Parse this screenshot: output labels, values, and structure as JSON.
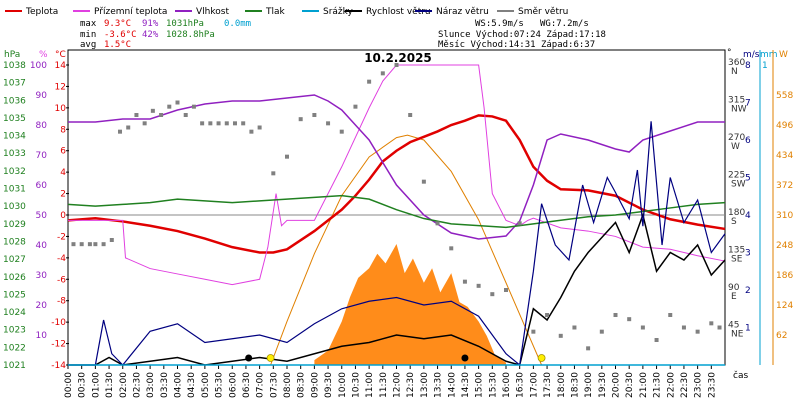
{
  "chart_data": {
    "type": "line",
    "title": "10.2.2025",
    "legend": [
      {
        "key": "temp",
        "label": "Teplota",
        "color": "#e00000"
      },
      {
        "key": "dew",
        "label": "Přízemní teplota",
        "color": "#e040e0"
      },
      {
        "key": "hum",
        "label": "Vlhkost",
        "color": "#9020c0"
      },
      {
        "key": "press",
        "label": "Tlak",
        "color": "#208020"
      },
      {
        "key": "rain",
        "label": "Srážky",
        "color": "#00a0d0"
      },
      {
        "key": "wind",
        "label": "Rychlost větru",
        "color": "#000000"
      },
      {
        "key": "gust",
        "label": "Náraz větru",
        "color": "#000080"
      },
      {
        "key": "dir",
        "label": "Směr větru",
        "color": "#808080"
      }
    ],
    "stats": {
      "max_label": "max",
      "max_temp": "9.3°C",
      "max_hum": "91%",
      "max_press": "1031hPa",
      "max_rain": "0.0mm",
      "min_label": "min",
      "min_temp": "-3.6°C",
      "min_hum": "42%",
      "min_press": "1028.8hPa",
      "avg_label": "avg",
      "avg_temp": "1.5°C",
      "ws": "WS:5.9m/s",
      "wg": "WG:7.2m/s",
      "sun": "Slunce Východ:07:24  Západ:17:18",
      "moon": "Měsíc  Východ:14:31  Západ:6:37"
    },
    "axes": {
      "hpa_title": "hPa",
      "hpa_ticks": [
        "1038",
        "1037",
        "1036",
        "1035",
        "1034",
        "1033",
        "1032",
        "1031",
        "1030",
        "1029",
        "1028",
        "1027",
        "1026",
        "1025",
        "1024",
        "1023",
        "1022",
        "1021"
      ],
      "pct_title": "%",
      "pct_ticks": [
        "100",
        "90",
        "80",
        "70",
        "60",
        "50",
        "40",
        "30",
        "20",
        "10"
      ],
      "c_title": "°C",
      "c_ticks": [
        "14",
        "12",
        "10",
        "8",
        "6",
        "4",
        "2",
        "0",
        "-2",
        "-4",
        "-6",
        "-8",
        "-10",
        "-12",
        "-14"
      ],
      "dir_title": "°",
      "dir_ticks": [
        [
          "360",
          "N"
        ],
        [
          "315",
          "NW"
        ],
        [
          "270",
          "W"
        ],
        [
          "225",
          "SW"
        ],
        [
          "180",
          "S"
        ],
        [
          "135",
          "SE"
        ],
        [
          "90",
          "E"
        ],
        [
          "45",
          "NE"
        ]
      ],
      "ms_title": "m/s",
      "ms_ticks": [
        "8",
        "7",
        "6",
        "5",
        "4",
        "3",
        "2",
        "1"
      ],
      "mm_title": "mm",
      "mm_tick": "1",
      "w_title": "W",
      "w_ticks": [
        "558",
        "496",
        "434",
        "372",
        "310",
        "248",
        "186",
        "124",
        "62"
      ],
      "x_title": "čas",
      "x_ticks": [
        "00:00",
        "00:30",
        "01:00",
        "01:30",
        "02:00",
        "02:30",
        "03:00",
        "03:30",
        "04:00",
        "04:30",
        "05:00",
        "05:30",
        "06:00",
        "06:30",
        "07:00",
        "07:30",
        "08:00",
        "08:30",
        "09:00",
        "09:30",
        "10:00",
        "10:30",
        "11:00",
        "11:30",
        "12:00",
        "12:30",
        "13:00",
        "13:30",
        "14:00",
        "14:30",
        "15:00",
        "15:30",
        "16:00",
        "16:30",
        "17:00",
        "17:30",
        "18:00",
        "18:30",
        "19:00",
        "19:30",
        "20:00",
        "20:30",
        "21:00",
        "21:30",
        "22:00",
        "22:30",
        "23:00",
        "23:30"
      ]
    },
    "time_range_h": [
      0,
      24
    ],
    "temp_range_c": [
      -14,
      14
    ],
    "hum_range_pct": [
      0,
      100
    ],
    "press_range_hpa": [
      1021,
      1038
    ],
    "dir_range_deg": [
      0,
      360
    ],
    "wind_range_ms": [
      0,
      8
    ],
    "solar_range_w": [
      0,
      620
    ],
    "series": [
      {
        "name": "Teplota",
        "key": "temp",
        "x": [
          0,
          1,
          2,
          3,
          4,
          5,
          6,
          7,
          7.5,
          8,
          9,
          10,
          10.5,
          11,
          11.5,
          12,
          12.5,
          13,
          13.5,
          14,
          14.5,
          15,
          15.5,
          16,
          16.5,
          17,
          17.5,
          18,
          19,
          20,
          21,
          22,
          23,
          24
        ],
        "y": [
          -0.5,
          -0.3,
          -0.6,
          -1.0,
          -1.5,
          -2.2,
          -3.0,
          -3.5,
          -3.5,
          -3.2,
          -1.5,
          0.5,
          1.8,
          3.3,
          5.0,
          6.0,
          6.8,
          7.3,
          7.8,
          8.4,
          8.8,
          9.3,
          9.2,
          8.8,
          7.0,
          4.5,
          3.2,
          2.4,
          2.3,
          1.8,
          0.5,
          -0.4,
          -0.9,
          -1.3
        ]
      },
      {
        "name": "Přízemní teplota",
        "key": "dew",
        "x": [
          0,
          1.5,
          2.0,
          2.1,
          3,
          4,
          5,
          6,
          7,
          7.3,
          7.6,
          7.8,
          8,
          9,
          10,
          11,
          11.5,
          12,
          12.5,
          13,
          13.5,
          14,
          14.5,
          15,
          15.2,
          15.5,
          16,
          16.5,
          16.8,
          17,
          18,
          19,
          20,
          21,
          22,
          23,
          24
        ],
        "y": [
          -0.5,
          -0.5,
          -0.5,
          -4.0,
          -5.0,
          -5.5,
          -6.0,
          -6.5,
          -6.0,
          -3.0,
          2.0,
          -1.0,
          -0.5,
          -0.5,
          4.5,
          10,
          12.5,
          14,
          14,
          14,
          14,
          14,
          14,
          14,
          10,
          2.0,
          -0.5,
          -1.0,
          -0.5,
          -0.3,
          -1.2,
          -1.5,
          -2.0,
          -3.0,
          -3.2,
          -3.8,
          -4.3
        ]
      },
      {
        "name": "Vlhkost",
        "key": "hum",
        "x": [
          0,
          1,
          2,
          3,
          4,
          5,
          6,
          7,
          8,
          9,
          9.5,
          10,
          11,
          12,
          13,
          14,
          15,
          16,
          16.5,
          17,
          17.5,
          18,
          19,
          20,
          20.5,
          21,
          22,
          23,
          24
        ],
        "y": [
          81,
          81,
          82,
          82,
          85,
          87,
          88,
          88,
          89,
          90,
          88,
          85,
          75,
          60,
          50,
          44,
          42,
          43,
          48,
          60,
          75,
          77,
          75,
          72,
          71,
          75,
          78,
          81,
          81
        ]
      },
      {
        "name": "Tlak",
        "key": "press",
        "x": [
          0,
          1,
          2,
          3,
          4,
          5,
          6,
          7,
          8,
          9,
          10,
          11,
          12,
          13,
          14,
          15,
          16,
          17,
          18,
          19,
          20,
          21,
          22,
          23,
          24
        ],
        "y": [
          1030.1,
          1030.0,
          1030.1,
          1030.2,
          1030.4,
          1030.3,
          1030.2,
          1030.3,
          1030.4,
          1030.5,
          1030.6,
          1030.4,
          1029.8,
          1029.3,
          1029.0,
          1028.9,
          1028.8,
          1029.0,
          1029.2,
          1029.4,
          1029.5,
          1029.7,
          1029.9,
          1030.1,
          1030.2
        ]
      },
      {
        "name": "Rychlost větru",
        "key": "wind",
        "x": [
          0,
          1,
          1.5,
          2,
          3,
          4,
          5,
          6,
          7,
          8,
          9,
          10,
          11,
          12,
          13,
          14,
          15,
          16,
          16.5,
          17,
          17.5,
          18,
          18.5,
          19,
          19.5,
          20,
          20.5,
          21,
          21.5,
          22,
          22.5,
          23,
          23.5,
          24
        ],
        "y": [
          0,
          0,
          0.2,
          0,
          0.1,
          0.2,
          0,
          0.1,
          0.2,
          0.1,
          0.3,
          0.5,
          0.6,
          0.8,
          0.7,
          0.8,
          0.5,
          0.1,
          0,
          1.5,
          1.2,
          1.8,
          2.5,
          3.0,
          3.4,
          3.8,
          3.0,
          4.0,
          2.5,
          3.0,
          2.8,
          3.2,
          2.4,
          2.8
        ]
      },
      {
        "name": "Náraz větru",
        "key": "gust",
        "x": [
          0,
          1,
          1.3,
          1.6,
          2,
          3,
          4,
          5,
          6,
          7,
          8,
          9,
          10,
          11,
          12,
          13,
          14,
          15,
          16,
          16.5,
          17,
          17.3,
          17.8,
          18.3,
          18.8,
          19.2,
          19.7,
          20,
          20.5,
          20.8,
          21,
          21.3,
          21.7,
          22,
          22.5,
          23,
          23.5,
          24
        ],
        "y": [
          0,
          0,
          1.2,
          0.3,
          0,
          0.9,
          1.1,
          0.6,
          0.7,
          0.8,
          0.6,
          1.1,
          1.5,
          1.7,
          1.8,
          1.6,
          1.7,
          1.3,
          0.3,
          0,
          2.5,
          4.3,
          3.2,
          2.8,
          4.8,
          3.8,
          5.0,
          4.6,
          3.9,
          5.2,
          3.7,
          6.5,
          3.2,
          5.0,
          3.8,
          4.4,
          3.0,
          3.5
        ]
      },
      {
        "name": "Směr větru",
        "key": "dir",
        "type": "scatter",
        "x": [
          0.2,
          0.5,
          0.8,
          1.0,
          1.3,
          1.6,
          1.9,
          2.2,
          2.5,
          2.8,
          3.1,
          3.4,
          3.7,
          4.0,
          4.3,
          4.6,
          4.9,
          5.2,
          5.5,
          5.8,
          6.1,
          6.4,
          6.7,
          7.0,
          7.5,
          8.0,
          8.5,
          9.0,
          9.5,
          10.0,
          10.5,
          11.0,
          11.5,
          12.0,
          12.5,
          13.0,
          13.5,
          14.0,
          14.5,
          15.0,
          15.5,
          16.0,
          16.5,
          17.0,
          17.5,
          18.0,
          18.5,
          19.0,
          19.5,
          20.0,
          20.5,
          21.0,
          21.5,
          22.0,
          22.5,
          23.0,
          23.5,
          23.8
        ],
        "y": [
          145,
          145,
          145,
          145,
          145,
          150,
          280,
          285,
          300,
          290,
          305,
          300,
          310,
          315,
          300,
          310,
          290,
          290,
          290,
          290,
          290,
          290,
          280,
          285,
          230,
          250,
          295,
          300,
          290,
          280,
          310,
          340,
          350,
          360,
          300,
          220,
          170,
          140,
          100,
          95,
          85,
          90,
          170,
          40,
          60,
          35,
          45,
          20,
          40,
          60,
          55,
          45,
          30,
          60,
          45,
          40,
          50,
          45
        ]
      },
      {
        "name": "Srážky",
        "key": "rain",
        "x": [
          0,
          24
        ],
        "y": [
          0,
          0
        ]
      }
    ],
    "solar_max": {
      "x": [
        7.4,
        8,
        9,
        10,
        11,
        12,
        12.4,
        13,
        14,
        15,
        16,
        17.3
      ],
      "y": [
        0,
        90,
        230,
        350,
        430,
        470,
        475,
        465,
        400,
        300,
        170,
        0
      ]
    },
    "solar_measured": {
      "x": [
        9.0,
        9.5,
        10,
        10.3,
        10.6,
        11,
        11.3,
        11.6,
        12,
        12.3,
        12.6,
        13,
        13.3,
        13.6,
        14,
        14.3,
        14.6,
        15,
        15.3,
        15.6,
        16
      ],
      "y": [
        10,
        30,
        90,
        140,
        180,
        200,
        230,
        210,
        250,
        190,
        220,
        170,
        200,
        150,
        190,
        130,
        120,
        90,
        60,
        20,
        5
      ]
    }
  }
}
